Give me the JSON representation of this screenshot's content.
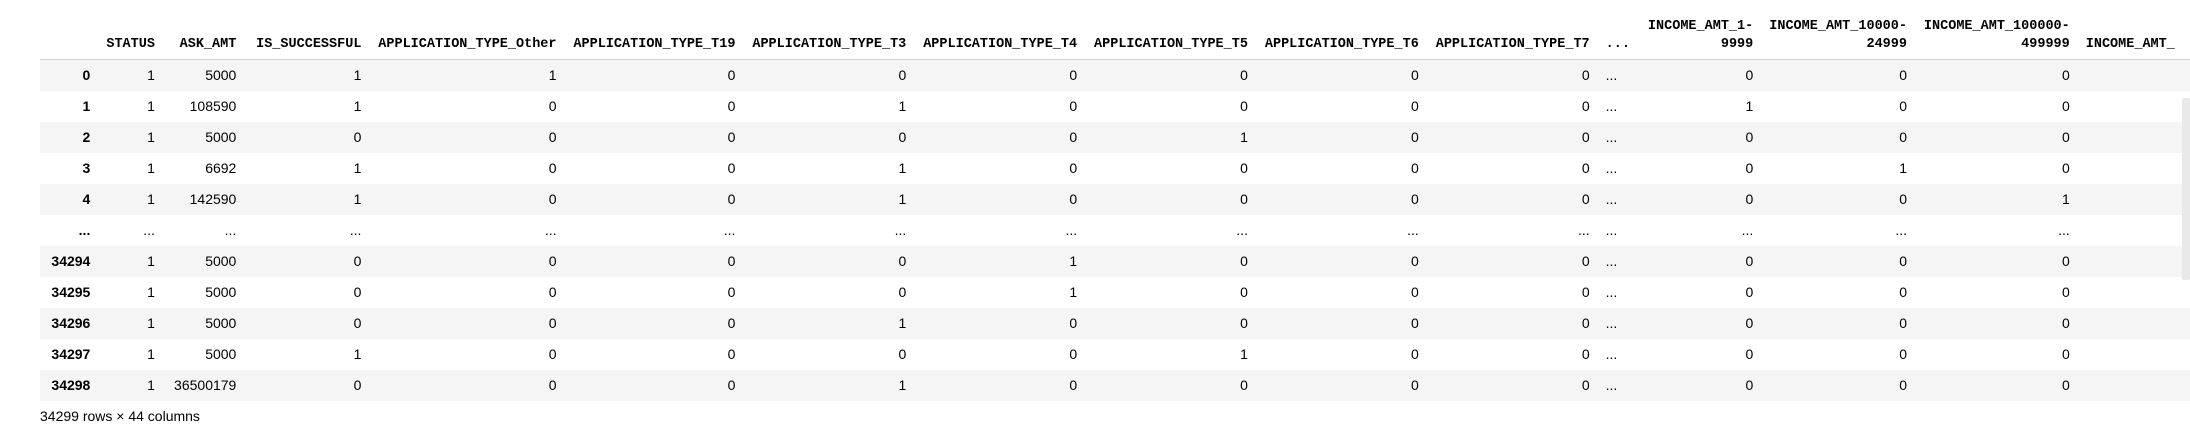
{
  "columns": [
    "",
    "STATUS",
    "ASK_AMT",
    "IS_SUCCESSFUL",
    "APPLICATION_TYPE_Other",
    "APPLICATION_TYPE_T19",
    "APPLICATION_TYPE_T3",
    "APPLICATION_TYPE_T4",
    "APPLICATION_TYPE_T5",
    "APPLICATION_TYPE_T6",
    "APPLICATION_TYPE_T7",
    "...",
    "INCOME_AMT_1-\n9999",
    "INCOME_AMT_10000-\n24999",
    "INCOME_AMT_100000-\n499999",
    "INCOME_AMT_"
  ],
  "rows": [
    {
      "index": "0",
      "cells": [
        "1",
        "5000",
        "1",
        "1",
        "0",
        "0",
        "0",
        "0",
        "0",
        "0",
        "...",
        "0",
        "0",
        "0",
        ""
      ]
    },
    {
      "index": "1",
      "cells": [
        "1",
        "108590",
        "1",
        "0",
        "0",
        "1",
        "0",
        "0",
        "0",
        "0",
        "...",
        "1",
        "0",
        "0",
        ""
      ]
    },
    {
      "index": "2",
      "cells": [
        "1",
        "5000",
        "0",
        "0",
        "0",
        "0",
        "0",
        "1",
        "0",
        "0",
        "...",
        "0",
        "0",
        "0",
        ""
      ]
    },
    {
      "index": "3",
      "cells": [
        "1",
        "6692",
        "1",
        "0",
        "0",
        "1",
        "0",
        "0",
        "0",
        "0",
        "...",
        "0",
        "1",
        "0",
        ""
      ]
    },
    {
      "index": "4",
      "cells": [
        "1",
        "142590",
        "1",
        "0",
        "0",
        "1",
        "0",
        "0",
        "0",
        "0",
        "...",
        "0",
        "0",
        "1",
        ""
      ]
    },
    {
      "index": "...",
      "cells": [
        "...",
        "...",
        "...",
        "...",
        "...",
        "...",
        "...",
        "...",
        "...",
        "...",
        "...",
        "...",
        "...",
        "...",
        ""
      ]
    },
    {
      "index": "34294",
      "cells": [
        "1",
        "5000",
        "0",
        "0",
        "0",
        "0",
        "1",
        "0",
        "0",
        "0",
        "...",
        "0",
        "0",
        "0",
        ""
      ]
    },
    {
      "index": "34295",
      "cells": [
        "1",
        "5000",
        "0",
        "0",
        "0",
        "0",
        "1",
        "0",
        "0",
        "0",
        "...",
        "0",
        "0",
        "0",
        ""
      ]
    },
    {
      "index": "34296",
      "cells": [
        "1",
        "5000",
        "0",
        "0",
        "0",
        "1",
        "0",
        "0",
        "0",
        "0",
        "...",
        "0",
        "0",
        "0",
        ""
      ]
    },
    {
      "index": "34297",
      "cells": [
        "1",
        "5000",
        "1",
        "0",
        "0",
        "0",
        "0",
        "1",
        "0",
        "0",
        "...",
        "0",
        "0",
        "0",
        ""
      ]
    },
    {
      "index": "34298",
      "cells": [
        "1",
        "36500179",
        "0",
        "0",
        "0",
        "1",
        "0",
        "0",
        "0",
        "0",
        "...",
        "0",
        "0",
        "0",
        ""
      ]
    }
  ],
  "footer": "34299 rows × 44 columns"
}
